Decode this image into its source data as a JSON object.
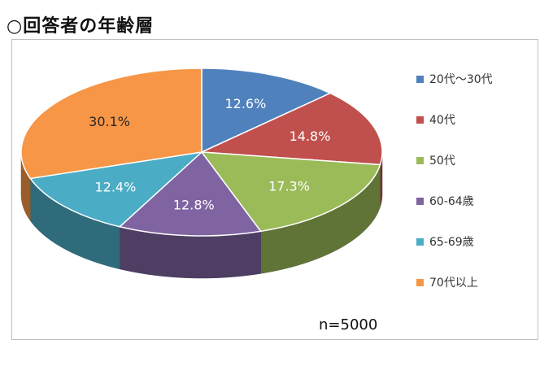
{
  "page_title": "○回答者の年齢層",
  "chart_data": {
    "type": "pie",
    "title": "",
    "categories": [
      "20代～30代",
      "40代",
      "50代",
      "60-64歳",
      "65-69歳",
      "70代以上"
    ],
    "values": [
      12.6,
      14.8,
      17.3,
      12.8,
      12.4,
      30.1
    ],
    "value_labels": [
      "12.6%",
      "14.8%",
      "17.3%",
      "12.8%",
      "12.4%",
      "30.1%"
    ],
    "colors": [
      "#4f81bd",
      "#c0504d",
      "#9bbb59",
      "#8064a2",
      "#4bacc6",
      "#f79646"
    ],
    "style": "3d-exploded-none",
    "legend_position": "right",
    "annotation": "n=5000"
  }
}
